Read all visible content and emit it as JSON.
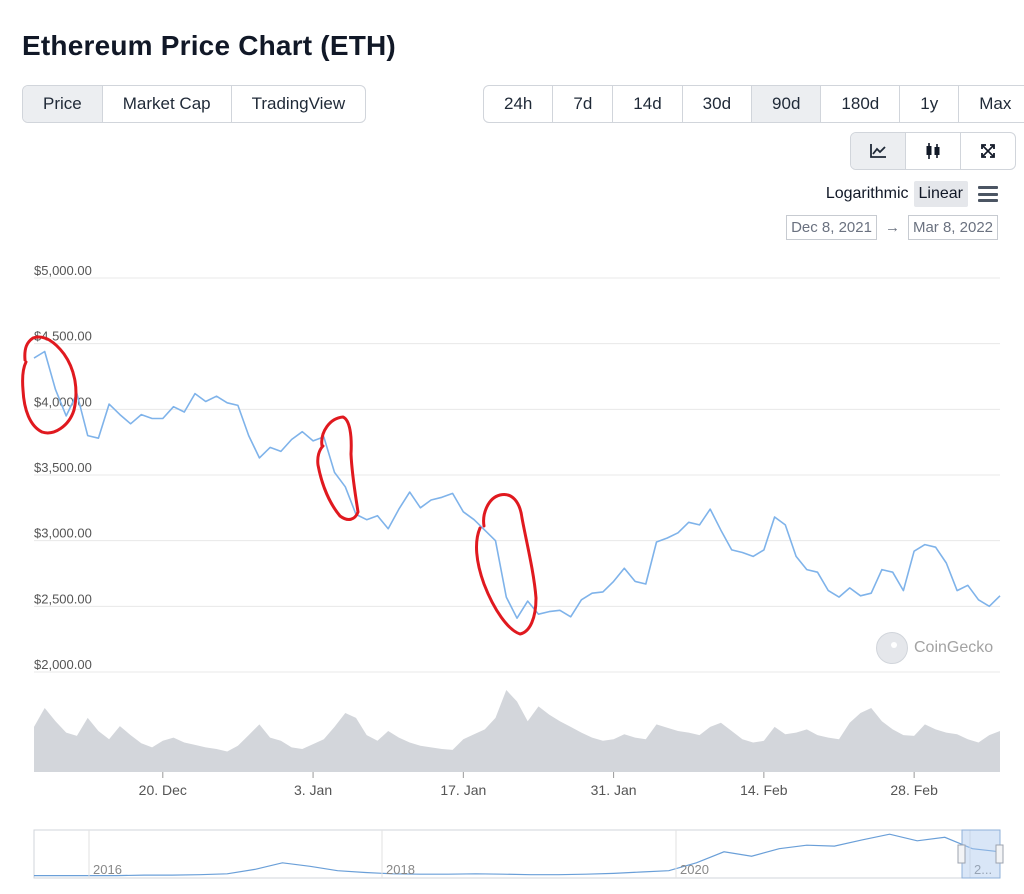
{
  "page_title": "Ethereum Price Chart (ETH)",
  "chart_type_tabs": [
    {
      "label": "Price",
      "active": true
    },
    {
      "label": "Market Cap",
      "active": false
    },
    {
      "label": "TradingView",
      "active": false
    }
  ],
  "range_tabs": [
    {
      "label": "24h",
      "active": false
    },
    {
      "label": "7d",
      "active": false
    },
    {
      "label": "14d",
      "active": false
    },
    {
      "label": "30d",
      "active": false
    },
    {
      "label": "90d",
      "active": true
    },
    {
      "label": "180d",
      "active": false
    },
    {
      "label": "1y",
      "active": false
    },
    {
      "label": "Max",
      "active": false
    }
  ],
  "view_tools": [
    {
      "icon": "line-chart-icon",
      "active": true
    },
    {
      "icon": "candlestick-icon",
      "active": false
    },
    {
      "icon": "fullscreen-icon",
      "active": false
    }
  ],
  "scale": {
    "options": [
      "Logarithmic",
      "Linear"
    ],
    "active": "Linear"
  },
  "date_range": {
    "from": "Dec 8, 2021",
    "arrow": "→",
    "to": "Mar 8, 2022"
  },
  "watermark": "CoinGecko",
  "colors": {
    "line": "#7fb3ea",
    "volume": "#d3d6db",
    "annotation": "#e0191f",
    "grid": "#e8e8e8"
  },
  "chart_data": {
    "type": "line",
    "x_range": [
      "2021-12-08",
      "2022-03-08"
    ],
    "ylim": [
      2000,
      5000
    ],
    "y_ticks": [
      "$5,000.00",
      "$4,500.00",
      "$4,000.00",
      "$3,500.00",
      "$3,000.00",
      "$2,500.00",
      "$2,000.00"
    ],
    "x_ticks": [
      {
        "label": "20. Dec",
        "date": "2021-12-20"
      },
      {
        "label": "3. Jan",
        "date": "2022-01-03"
      },
      {
        "label": "17. Jan",
        "date": "2022-01-17"
      },
      {
        "label": "31. Jan",
        "date": "2022-01-31"
      },
      {
        "label": "14. Feb",
        "date": "2022-02-14"
      },
      {
        "label": "28. Feb",
        "date": "2022-02-28"
      }
    ],
    "series": [
      {
        "values": [
          [
            "2021-12-08",
            4390
          ],
          [
            "2021-12-09",
            4440
          ],
          [
            "2021-12-10",
            4150
          ],
          [
            "2021-12-11",
            3950
          ],
          [
            "2021-12-12",
            4120
          ],
          [
            "2021-12-13",
            3800
          ],
          [
            "2021-12-14",
            3780
          ],
          [
            "2021-12-15",
            4040
          ],
          [
            "2021-12-16",
            3960
          ],
          [
            "2021-12-17",
            3890
          ],
          [
            "2021-12-18",
            3960
          ],
          [
            "2021-12-19",
            3930
          ],
          [
            "2021-12-20",
            3930
          ],
          [
            "2021-12-21",
            4020
          ],
          [
            "2021-12-22",
            3980
          ],
          [
            "2021-12-23",
            4120
          ],
          [
            "2021-12-24",
            4060
          ],
          [
            "2021-12-25",
            4100
          ],
          [
            "2021-12-26",
            4050
          ],
          [
            "2021-12-27",
            4030
          ],
          [
            "2021-12-28",
            3800
          ],
          [
            "2021-12-29",
            3630
          ],
          [
            "2021-12-30",
            3710
          ],
          [
            "2021-12-31",
            3680
          ],
          [
            "2022-01-01",
            3770
          ],
          [
            "2022-01-02",
            3830
          ],
          [
            "2022-01-03",
            3760
          ],
          [
            "2022-01-04",
            3790
          ],
          [
            "2022-01-05",
            3520
          ],
          [
            "2022-01-06",
            3410
          ],
          [
            "2022-01-07",
            3200
          ],
          [
            "2022-01-08",
            3160
          ],
          [
            "2022-01-09",
            3190
          ],
          [
            "2022-01-10",
            3090
          ],
          [
            "2022-01-11",
            3240
          ],
          [
            "2022-01-12",
            3370
          ],
          [
            "2022-01-13",
            3250
          ],
          [
            "2022-01-14",
            3310
          ],
          [
            "2022-01-15",
            3330
          ],
          [
            "2022-01-16",
            3360
          ],
          [
            "2022-01-17",
            3220
          ],
          [
            "2022-01-18",
            3160
          ],
          [
            "2022-01-19",
            3080
          ],
          [
            "2022-01-20",
            3000
          ],
          [
            "2022-01-21",
            2570
          ],
          [
            "2022-01-22",
            2410
          ],
          [
            "2022-01-23",
            2540
          ],
          [
            "2022-01-24",
            2440
          ],
          [
            "2022-01-25",
            2460
          ],
          [
            "2022-01-26",
            2470
          ],
          [
            "2022-01-27",
            2420
          ],
          [
            "2022-01-28",
            2550
          ],
          [
            "2022-01-29",
            2600
          ],
          [
            "2022-01-30",
            2610
          ],
          [
            "2022-01-31",
            2690
          ],
          [
            "2022-02-01",
            2790
          ],
          [
            "2022-02-02",
            2690
          ],
          [
            "2022-02-03",
            2670
          ],
          [
            "2022-02-04",
            2990
          ],
          [
            "2022-02-05",
            3020
          ],
          [
            "2022-02-06",
            3060
          ],
          [
            "2022-02-07",
            3140
          ],
          [
            "2022-02-08",
            3120
          ],
          [
            "2022-02-09",
            3240
          ],
          [
            "2022-02-10",
            3080
          ],
          [
            "2022-02-11",
            2930
          ],
          [
            "2022-02-12",
            2910
          ],
          [
            "2022-02-13",
            2880
          ],
          [
            "2022-02-14",
            2930
          ],
          [
            "2022-02-15",
            3180
          ],
          [
            "2022-02-16",
            3120
          ],
          [
            "2022-02-17",
            2880
          ],
          [
            "2022-02-18",
            2780
          ],
          [
            "2022-02-19",
            2760
          ],
          [
            "2022-02-20",
            2620
          ],
          [
            "2022-02-21",
            2570
          ],
          [
            "2022-02-22",
            2640
          ],
          [
            "2022-02-23",
            2580
          ],
          [
            "2022-02-24",
            2600
          ],
          [
            "2022-02-25",
            2780
          ],
          [
            "2022-02-26",
            2760
          ],
          [
            "2022-02-27",
            2620
          ],
          [
            "2022-02-28",
            2920
          ],
          [
            "2022-03-01",
            2970
          ],
          [
            "2022-03-02",
            2950
          ],
          [
            "2022-03-03",
            2830
          ],
          [
            "2022-03-04",
            2620
          ],
          [
            "2022-03-05",
            2660
          ],
          [
            "2022-03-06",
            2550
          ],
          [
            "2022-03-07",
            2500
          ],
          [
            "2022-03-08",
            2580
          ]
        ]
      }
    ],
    "volume_relative": [
      0.55,
      0.78,
      0.62,
      0.48,
      0.44,
      0.66,
      0.5,
      0.4,
      0.56,
      0.45,
      0.35,
      0.3,
      0.38,
      0.42,
      0.36,
      0.33,
      0.3,
      0.28,
      0.25,
      0.32,
      0.45,
      0.58,
      0.42,
      0.38,
      0.3,
      0.28,
      0.34,
      0.4,
      0.55,
      0.72,
      0.66,
      0.45,
      0.38,
      0.5,
      0.42,
      0.36,
      0.32,
      0.3,
      0.28,
      0.27,
      0.4,
      0.46,
      0.52,
      0.66,
      1.0,
      0.86,
      0.62,
      0.8,
      0.7,
      0.62,
      0.55,
      0.48,
      0.42,
      0.38,
      0.4,
      0.46,
      0.42,
      0.4,
      0.58,
      0.54,
      0.5,
      0.48,
      0.45,
      0.55,
      0.6,
      0.5,
      0.4,
      0.36,
      0.38,
      0.55,
      0.46,
      0.48,
      0.52,
      0.45,
      0.42,
      0.4,
      0.6,
      0.72,
      0.78,
      0.62,
      0.52,
      0.45,
      0.44,
      0.58,
      0.52,
      0.48,
      0.46,
      0.4,
      0.36,
      0.45,
      0.5
    ],
    "navigator": {
      "labels": [
        "2016",
        "2018",
        "2020",
        "2..."
      ],
      "values": [
        0.01,
        0.01,
        0.01,
        0.01,
        0.02,
        0.02,
        0.03,
        0.05,
        0.15,
        0.3,
        0.22,
        0.12,
        0.08,
        0.05,
        0.04,
        0.04,
        0.05,
        0.04,
        0.03,
        0.03,
        0.04,
        0.06,
        0.09,
        0.12,
        0.3,
        0.55,
        0.45,
        0.62,
        0.7,
        0.68,
        0.82,
        0.95,
        0.8,
        0.88,
        0.62,
        0.55
      ]
    },
    "annotations": [
      "freehand-circle",
      "freehand-circle",
      "freehand-circle"
    ]
  }
}
